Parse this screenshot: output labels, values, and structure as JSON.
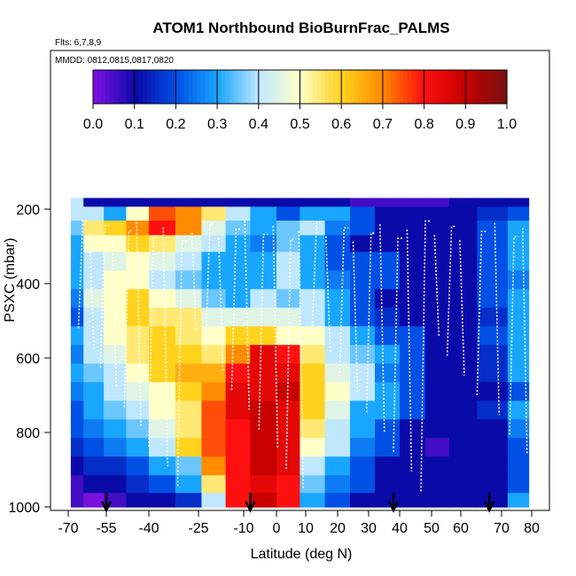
{
  "chart_data": {
    "type": "heatmap",
    "title": "ATOM1 Northbound BioBurnFrac_PALMS",
    "subtitle_flights": "Flts: 6,7,8,9",
    "subtitle_dates": "MMDD: 0812,0815,0817,0820",
    "xlabel": "Latitude (deg N)",
    "ylabel": "PSXC (mbar)",
    "xlim": [
      -70,
      80
    ],
    "ylim": [
      1000,
      150
    ],
    "x_ticks": [
      -70,
      -55,
      -40,
      -25,
      -10,
      0,
      10,
      20,
      30,
      40,
      50,
      60,
      70,
      80
    ],
    "x_tick_labels": [
      "-70",
      "-55",
      "-40",
      "-25",
      "-10",
      "0",
      "10",
      "20",
      "30",
      "40",
      "50",
      "60",
      "70",
      "80"
    ],
    "y_ticks": [
      200,
      400,
      600,
      800,
      1000
    ],
    "y_tick_labels": [
      "200",
      "400",
      "600",
      "800",
      "1000"
    ],
    "colorbar": {
      "range": [
        0.0,
        1.0
      ],
      "ticks": [
        "0.0",
        "0.1",
        "0.2",
        "0.3",
        "0.4",
        "0.5",
        "0.6",
        "0.7",
        "0.8",
        "0.9",
        "1.0"
      ],
      "colors": [
        "#7a10e0",
        "#0a0aa8",
        "#0050e6",
        "#19a6ff",
        "#bfe8ff",
        "#ffffc8",
        "#ffd21e",
        "#ff8c00",
        "#ff1010",
        "#c80000",
        "#7a1010"
      ]
    },
    "pressure_levels": [
      175,
      212,
      250,
      290,
      340,
      390,
      440,
      490,
      540,
      590,
      640,
      690,
      740,
      790,
      840,
      890,
      940,
      985
    ],
    "latitude_columns": [
      -68,
      -60,
      -52,
      -44,
      -36,
      -28,
      -20,
      -12,
      -4,
      4,
      12,
      20,
      28,
      36,
      44,
      52,
      60,
      68,
      76
    ],
    "values": [
      [
        0.4,
        0.1,
        0.1,
        0.1,
        0.1,
        0.1,
        0.1,
        0.1,
        0.1,
        0.1,
        0.1,
        0.1,
        0.05,
        0.05,
        0.05,
        0.05,
        0.1,
        0.1,
        0.1
      ],
      [
        0.4,
        0.4,
        0.3,
        0.5,
        0.75,
        0.7,
        0.55,
        0.4,
        0.3,
        0.2,
        0.3,
        0.3,
        0.2,
        0.1,
        0.1,
        0.1,
        0.1,
        0.15,
        0.2
      ],
      [
        0.35,
        0.55,
        0.6,
        0.7,
        0.8,
        0.7,
        0.45,
        0.35,
        0.3,
        0.35,
        0.4,
        0.25,
        0.2,
        0.1,
        0.1,
        0.1,
        0.1,
        0.2,
        0.3
      ],
      [
        0.3,
        0.5,
        0.5,
        0.6,
        0.55,
        0.45,
        0.4,
        0.3,
        0.25,
        0.35,
        0.3,
        0.2,
        0.1,
        0.1,
        0.1,
        0.1,
        0.1,
        0.2,
        0.3
      ],
      [
        0.3,
        0.4,
        0.45,
        0.5,
        0.45,
        0.4,
        0.3,
        0.3,
        0.3,
        0.4,
        0.3,
        0.2,
        0.2,
        0.2,
        0.1,
        0.1,
        0.1,
        0.2,
        0.3
      ],
      [
        0.3,
        0.4,
        0.5,
        0.5,
        0.4,
        0.35,
        0.3,
        0.3,
        0.3,
        0.4,
        0.3,
        0.25,
        0.2,
        0.2,
        0.1,
        0.1,
        0.1,
        0.2,
        0.25
      ],
      [
        0.25,
        0.45,
        0.5,
        0.6,
        0.5,
        0.45,
        0.35,
        0.3,
        0.4,
        0.35,
        0.4,
        0.3,
        0.2,
        0.1,
        0.1,
        0.1,
        0.1,
        0.2,
        0.3
      ],
      [
        0.2,
        0.4,
        0.5,
        0.6,
        0.55,
        0.55,
        0.45,
        0.45,
        0.45,
        0.45,
        0.4,
        0.3,
        0.2,
        0.15,
        0.1,
        0.1,
        0.1,
        0.15,
        0.3
      ],
      [
        0.3,
        0.4,
        0.5,
        0.55,
        0.6,
        0.55,
        0.5,
        0.6,
        0.6,
        0.5,
        0.5,
        0.4,
        0.3,
        0.2,
        0.2,
        0.1,
        0.1,
        0.2,
        0.3
      ],
      [
        0.25,
        0.4,
        0.45,
        0.55,
        0.6,
        0.6,
        0.55,
        0.7,
        0.85,
        0.8,
        0.55,
        0.4,
        0.35,
        0.3,
        0.2,
        0.1,
        0.1,
        0.15,
        0.3
      ],
      [
        0.3,
        0.35,
        0.4,
        0.5,
        0.6,
        0.65,
        0.65,
        0.8,
        0.85,
        0.85,
        0.6,
        0.45,
        0.4,
        0.25,
        0.2,
        0.1,
        0.1,
        0.15,
        0.3
      ],
      [
        0.25,
        0.3,
        0.4,
        0.45,
        0.5,
        0.6,
        0.7,
        0.85,
        0.85,
        0.9,
        0.6,
        0.5,
        0.4,
        0.3,
        0.2,
        0.1,
        0.1,
        0.1,
        0.2
      ],
      [
        0.2,
        0.3,
        0.35,
        0.4,
        0.5,
        0.55,
        0.75,
        0.85,
        0.9,
        0.85,
        0.6,
        0.45,
        0.3,
        0.3,
        0.2,
        0.1,
        0.1,
        0.15,
        0.3
      ],
      [
        0.2,
        0.25,
        0.3,
        0.35,
        0.45,
        0.55,
        0.75,
        0.8,
        0.9,
        0.85,
        0.55,
        0.4,
        0.3,
        0.2,
        0.1,
        0.1,
        0.1,
        0.1,
        0.25
      ],
      [
        0.15,
        0.2,
        0.25,
        0.3,
        0.4,
        0.6,
        0.75,
        0.8,
        0.9,
        0.85,
        0.5,
        0.4,
        0.25,
        0.2,
        0.1,
        0.05,
        0.1,
        0.1,
        0.2
      ],
      [
        0.1,
        0.15,
        0.15,
        0.2,
        0.3,
        0.35,
        0.7,
        0.8,
        0.9,
        0.85,
        0.4,
        0.3,
        0.2,
        0.1,
        0.1,
        0.1,
        0.1,
        0.1,
        0.2
      ],
      [
        0.05,
        0.1,
        0.1,
        0.15,
        0.2,
        0.3,
        0.55,
        0.8,
        0.85,
        0.8,
        0.35,
        0.25,
        0.2,
        0.1,
        0.1,
        0.1,
        0.1,
        0.1,
        0.2
      ],
      [
        0.05,
        0.0,
        0.05,
        0.1,
        0.1,
        0.15,
        0.4,
        0.8,
        0.9,
        0.8,
        0.3,
        0.2,
        0.1,
        0.1,
        0.1,
        0.1,
        0.1,
        0.1,
        0.3
      ]
    ],
    "data_gap_above_pressure": 170,
    "latitude_markers": [
      -55,
      -8,
      38,
      67
    ]
  }
}
